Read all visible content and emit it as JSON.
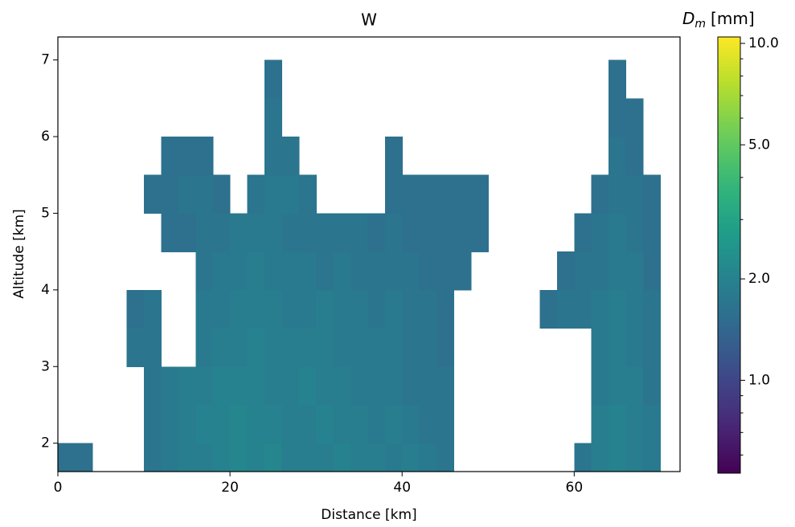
{
  "chart_data": {
    "type": "heatmap",
    "title": "W",
    "x_label": "Distance [km]",
    "y_label": "Altitude [km]",
    "colorbar_label_symbol": "D",
    "colorbar_label_subscript": "m",
    "colorbar_label_unit": "[mm]",
    "colormap": "viridis",
    "color_scale": "log",
    "clim": [
      0.53,
      10.45
    ],
    "colorbar_ticks": [
      {
        "value": 1,
        "label": "1.0"
      },
      {
        "value": 2,
        "label": "2.0"
      },
      {
        "value": 5,
        "label": "5.0"
      },
      {
        "value": 10,
        "label": "10.0"
      }
    ],
    "colorbar_minor_ticks": [
      0.6,
      0.7,
      0.8,
      0.9,
      3,
      4,
      6,
      7,
      8,
      9
    ],
    "xlim": [
      0,
      72.3
    ],
    "ylim": [
      1.63,
      7.3
    ],
    "xticks": [
      0,
      20,
      40,
      60
    ],
    "yticks": [
      2,
      3,
      4,
      5,
      6,
      7
    ],
    "x_edges": [
      0,
      2,
      4,
      6,
      8,
      10,
      12,
      14,
      16,
      18,
      20,
      22,
      24,
      26,
      28,
      30,
      32,
      34,
      36,
      38,
      40,
      42,
      44,
      46,
      48,
      50,
      52,
      54,
      56,
      58,
      60,
      62,
      64,
      66,
      68,
      70,
      72
    ],
    "y_edges": [
      1.5,
      2,
      2.5,
      3,
      3.5,
      4,
      4.5,
      5,
      5.5,
      6,
      6.5,
      7
    ],
    "values": [
      [
        1.6,
        1.6,
        null,
        null,
        null,
        1.7,
        1.8,
        1.9,
        1.9,
        2.0,
        2.1,
        2.0,
        2.1,
        1.9,
        1.9,
        1.9,
        2.0,
        1.9,
        1.9,
        1.8,
        1.9,
        1.8,
        1.7,
        null,
        null,
        null,
        null,
        null,
        null,
        null,
        1.7,
        1.9,
        2.0,
        1.9,
        1.8,
        null
      ],
      [
        null,
        null,
        null,
        null,
        null,
        1.7,
        1.8,
        1.9,
        2.0,
        2.0,
        2.1,
        2.0,
        2.0,
        1.9,
        1.9,
        2.0,
        1.9,
        1.9,
        1.8,
        1.9,
        1.8,
        1.7,
        1.7,
        null,
        null,
        null,
        null,
        null,
        null,
        null,
        null,
        1.9,
        2.0,
        1.9,
        1.8,
        null
      ],
      [
        null,
        null,
        null,
        null,
        null,
        1.7,
        1.8,
        1.9,
        1.9,
        2.0,
        2.0,
        2.0,
        1.9,
        1.9,
        2.0,
        1.9,
        1.9,
        1.8,
        1.8,
        1.8,
        1.7,
        1.7,
        1.7,
        null,
        null,
        null,
        null,
        null,
        null,
        null,
        null,
        1.8,
        1.9,
        1.9,
        1.7,
        null
      ],
      [
        null,
        null,
        null,
        null,
        1.7,
        1.7,
        null,
        null,
        1.8,
        1.9,
        1.9,
        2.0,
        1.9,
        1.9,
        1.9,
        1.9,
        1.8,
        1.8,
        1.8,
        1.8,
        1.7,
        1.7,
        1.6,
        null,
        null,
        null,
        null,
        null,
        null,
        null,
        null,
        1.8,
        1.9,
        1.8,
        1.7,
        null
      ],
      [
        null,
        null,
        null,
        null,
        1.6,
        1.7,
        null,
        null,
        1.8,
        1.8,
        1.9,
        1.9,
        1.9,
        1.8,
        1.8,
        1.9,
        1.8,
        1.8,
        1.7,
        1.8,
        1.7,
        1.7,
        1.6,
        null,
        null,
        null,
        null,
        null,
        1.6,
        1.7,
        1.7,
        1.8,
        1.9,
        1.8,
        1.7,
        null
      ],
      [
        null,
        null,
        null,
        null,
        null,
        null,
        null,
        null,
        1.7,
        1.8,
        1.8,
        1.9,
        1.8,
        1.8,
        1.8,
        1.7,
        1.8,
        1.7,
        1.7,
        1.7,
        1.7,
        1.6,
        1.6,
        1.6,
        null,
        null,
        null,
        null,
        null,
        1.6,
        1.7,
        1.7,
        1.8,
        1.8,
        1.6,
        null
      ],
      [
        null,
        null,
        null,
        null,
        null,
        null,
        1.6,
        1.6,
        1.7,
        1.7,
        1.8,
        1.8,
        1.8,
        1.7,
        1.7,
        1.7,
        1.7,
        1.7,
        1.6,
        1.7,
        1.6,
        1.6,
        1.6,
        1.6,
        1.6,
        null,
        null,
        null,
        null,
        null,
        1.6,
        1.7,
        1.8,
        1.7,
        1.6,
        null
      ],
      [
        null,
        null,
        null,
        null,
        null,
        1.6,
        1.6,
        1.7,
        1.7,
        1.6,
        null,
        1.7,
        1.8,
        1.8,
        1.7,
        null,
        null,
        null,
        null,
        1.6,
        1.6,
        1.6,
        1.6,
        1.6,
        1.6,
        null,
        null,
        null,
        null,
        null,
        null,
        1.6,
        1.7,
        1.7,
        1.6,
        null
      ],
      [
        null,
        null,
        null,
        null,
        null,
        null,
        1.6,
        1.6,
        1.6,
        null,
        null,
        null,
        1.7,
        1.7,
        null,
        null,
        null,
        null,
        null,
        1.6,
        null,
        null,
        null,
        null,
        null,
        null,
        null,
        null,
        null,
        null,
        null,
        null,
        1.7,
        1.6,
        null,
        null
      ],
      [
        null,
        null,
        null,
        null,
        null,
        null,
        null,
        null,
        null,
        null,
        null,
        null,
        1.7,
        null,
        null,
        null,
        null,
        null,
        null,
        null,
        null,
        null,
        null,
        null,
        null,
        null,
        null,
        null,
        null,
        null,
        null,
        null,
        1.6,
        1.6,
        null,
        null
      ],
      [
        null,
        null,
        null,
        null,
        null,
        null,
        null,
        null,
        null,
        null,
        null,
        null,
        1.6,
        null,
        null,
        null,
        null,
        null,
        null,
        null,
        null,
        null,
        null,
        null,
        null,
        null,
        null,
        null,
        null,
        null,
        null,
        null,
        1.6,
        null,
        null,
        null
      ]
    ]
  }
}
